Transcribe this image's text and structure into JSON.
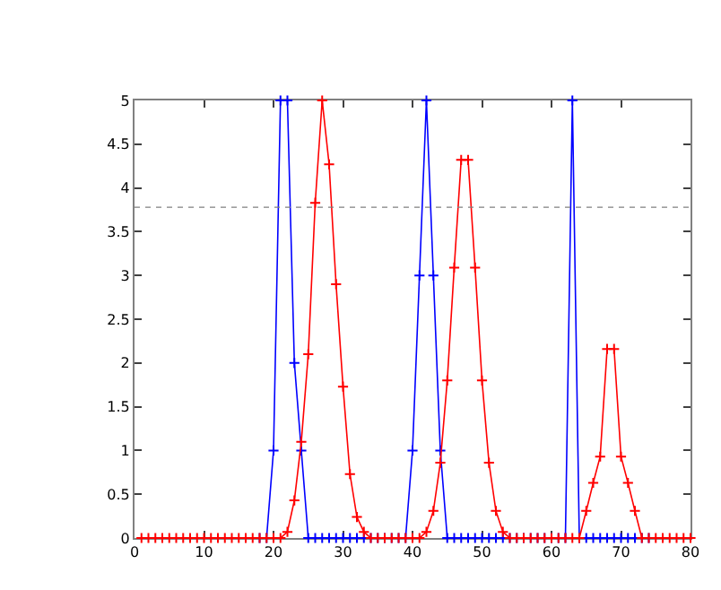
{
  "chart_data": {
    "type": "line",
    "x": [
      1,
      2,
      3,
      4,
      5,
      6,
      7,
      8,
      9,
      10,
      11,
      12,
      13,
      14,
      15,
      16,
      17,
      18,
      19,
      20,
      21,
      22,
      23,
      24,
      25,
      26,
      27,
      28,
      29,
      30,
      31,
      32,
      33,
      34,
      35,
      36,
      37,
      38,
      39,
      40,
      41,
      42,
      43,
      44,
      45,
      46,
      47,
      48,
      49,
      50,
      51,
      52,
      53,
      54,
      55,
      56,
      57,
      58,
      59,
      60,
      61,
      62,
      63,
      64,
      65,
      66,
      67,
      68,
      69,
      70,
      71,
      72,
      73,
      74,
      75,
      76,
      77,
      78,
      79,
      80
    ],
    "series": [
      {
        "color": "#0000ff",
        "values": [
          null,
          null,
          null,
          null,
          null,
          null,
          null,
          null,
          null,
          null,
          null,
          null,
          null,
          null,
          null,
          null,
          null,
          0,
          0,
          1,
          5,
          5,
          2,
          1,
          0,
          0,
          0,
          0,
          0,
          0,
          0,
          0,
          0,
          0,
          0,
          0,
          0,
          0,
          0,
          1,
          3,
          5,
          3,
          1,
          0,
          0,
          0,
          0,
          0,
          0,
          0,
          0,
          0,
          0,
          0,
          0,
          0,
          0,
          0,
          0,
          0,
          0,
          5,
          0,
          0,
          0,
          0,
          0,
          0,
          0,
          0,
          0,
          0,
          0,
          null,
          null,
          null,
          null,
          null,
          null
        ]
      },
      {
        "color": "#ff0000",
        "values": [
          0,
          0,
          0,
          0,
          0,
          0,
          0,
          0,
          0,
          0,
          0,
          0,
          0,
          0,
          0,
          0,
          0,
          0,
          0,
          0,
          0,
          0.07,
          0.43,
          1.1,
          2.1,
          3.83,
          5,
          4.27,
          2.9,
          1.73,
          0.73,
          0.24,
          0.07,
          0,
          0,
          0,
          0,
          0,
          0,
          0,
          0,
          0.07,
          0.31,
          0.86,
          1.8,
          3.09,
          4.32,
          4.32,
          3.09,
          1.8,
          0.86,
          0.31,
          0.07,
          0,
          0,
          0,
          0,
          0,
          0,
          0,
          0,
          0,
          0,
          0,
          0.31,
          0.63,
          0.93,
          2.16,
          2.16,
          0.93,
          0.63,
          0.31,
          0,
          0,
          0,
          0,
          0,
          0,
          0,
          0
        ]
      }
    ],
    "xlim": [
      0,
      80
    ],
    "xticks": [
      0,
      10,
      20,
      30,
      40,
      50,
      60,
      70,
      80
    ],
    "ylim": [
      0,
      5
    ],
    "yticks": [
      0,
      0.5,
      1,
      1.5,
      2,
      2.5,
      3,
      3.5,
      4,
      4.5,
      5
    ],
    "ref_lines": [
      {
        "axis": "y",
        "value": 3.78,
        "color": "#808080",
        "line_style": "dotted"
      }
    ],
    "marker": "cross",
    "line_style": "solid"
  }
}
